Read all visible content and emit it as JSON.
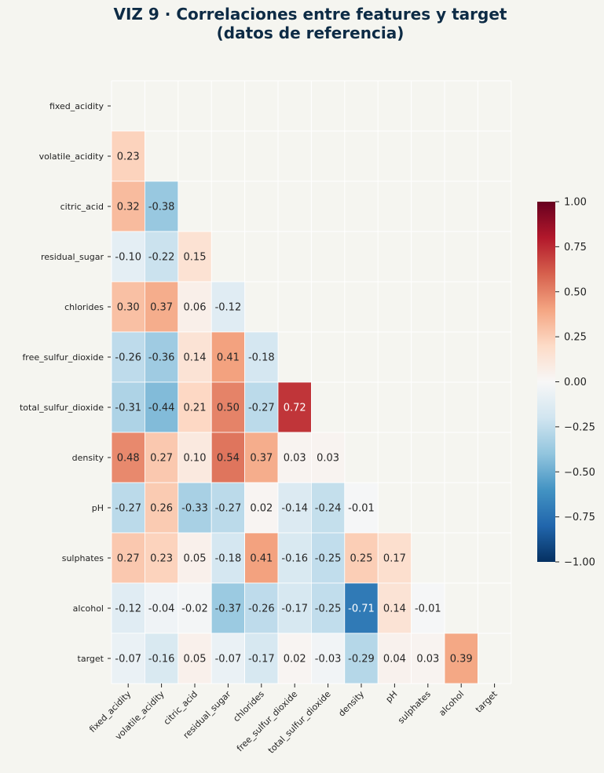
{
  "chart_data": {
    "type": "heatmap",
    "title": "VIZ 9 · Correlaciones entre features y target\n(datos de referencia)",
    "variables": [
      "fixed_acidity",
      "volatile_acidity",
      "citric_acid",
      "residual_sugar",
      "chlorides",
      "free_sulfur_dioxide",
      "total_sulfur_dioxide",
      "density",
      "pH",
      "sulphates",
      "alcohol",
      "target"
    ],
    "mask": "upper-triangle-including-diagonal",
    "values": [
      [],
      [
        0.23
      ],
      [
        0.32,
        -0.38
      ],
      [
        -0.1,
        -0.22,
        0.15
      ],
      [
        0.3,
        0.37,
        0.06,
        -0.12
      ],
      [
        -0.26,
        -0.36,
        0.14,
        0.41,
        -0.18
      ],
      [
        -0.31,
        -0.44,
        0.21,
        0.5,
        -0.27,
        0.72
      ],
      [
        0.48,
        0.27,
        0.1,
        0.54,
        0.37,
        0.03,
        0.03
      ],
      [
        -0.27,
        0.26,
        -0.33,
        -0.27,
        0.02,
        -0.14,
        -0.24,
        -0.01
      ],
      [
        0.27,
        0.23,
        0.05,
        -0.18,
        0.41,
        -0.16,
        -0.25,
        0.25,
        0.17
      ],
      [
        -0.12,
        -0.04,
        -0.02,
        -0.37,
        -0.26,
        -0.17,
        -0.25,
        -0.71,
        0.14,
        -0.01
      ],
      [
        -0.07,
        -0.16,
        0.05,
        -0.07,
        -0.17,
        0.02,
        -0.03,
        -0.29,
        0.04,
        0.03,
        0.39
      ]
    ],
    "colormap": "RdBu_r",
    "vmin": -1.0,
    "vmax": 1.0,
    "colorbar_ticks": [
      "1.00",
      "0.75",
      "0.50",
      "0.25",
      "0.00",
      "−0.25",
      "−0.50",
      "−0.75",
      "−1.00"
    ],
    "colorbar_tick_values": [
      1.0,
      0.75,
      0.5,
      0.25,
      0.0,
      -0.25,
      -0.5,
      -0.75,
      -1.0
    ],
    "grid": true
  }
}
